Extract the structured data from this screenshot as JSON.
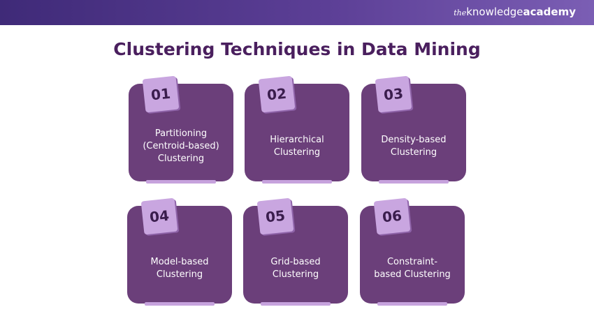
{
  "header": {
    "brand": {
      "prefix": "the",
      "name": "knowledge",
      "suffix": "academy"
    }
  },
  "title": "Clustering Techniques in Data Mining",
  "cards": [
    {
      "number": "01",
      "label_lines": [
        "Partitioning",
        "(Centroid-based)",
        "Clustering"
      ]
    },
    {
      "number": "02",
      "label_lines": [
        "Hierarchical",
        "Clustering"
      ]
    },
    {
      "number": "03",
      "label_lines": [
        "Density-based",
        "Clustering"
      ]
    },
    {
      "number": "04",
      "label_lines": [
        "Model-based",
        "Clustering"
      ]
    },
    {
      "number": "05",
      "label_lines": [
        "Grid-based",
        "Clustering"
      ]
    },
    {
      "number": "06",
      "label_lines": [
        "Constraint-",
        "based Clustering"
      ]
    }
  ]
}
